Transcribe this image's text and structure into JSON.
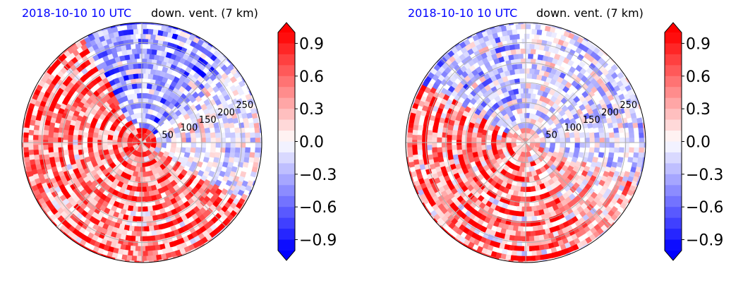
{
  "panels": [
    {
      "title_left": "2018-10-10 10 UTC",
      "title_right": "down. vent. (7 km)"
    },
    {
      "title_left": "2018-10-10 10 UTC",
      "title_right": "down. vent. (7 km)"
    }
  ],
  "colors": {
    "positive": "#ff0000",
    "negative": "#0000ff",
    "neutral": "#ffffff",
    "title_date": "#0000ff"
  },
  "chart_data": [
    {
      "type": "heatmap",
      "projection": "polar",
      "title": "down. vent. (7 km)",
      "date_label": "2018-10-10 10 UTC",
      "radial_ticks": [
        50,
        100,
        150,
        200,
        250
      ],
      "radial_gridlines": true,
      "angular_gridlines_deg": [
        0,
        45,
        90,
        135,
        180,
        225,
        270,
        315
      ],
      "field_description": "dominant positive values in south-western half forming spiral bands; negative values concentrated north and north-east of center",
      "colorbar": {
        "min": -1.0,
        "max": 1.0,
        "extend": "both",
        "levels": 20,
        "ticks": [
          "0.9",
          "0.6",
          "0.3",
          "0.0",
          "−0.3",
          "−0.6",
          "−0.9"
        ],
        "tick_values": [
          0.9,
          0.6,
          0.3,
          0.0,
          -0.3,
          -0.6,
          -0.9
        ]
      }
    },
    {
      "type": "heatmap",
      "projection": "polar",
      "title": "down. vent. (7 km)",
      "date_label": "2018-10-10 10 UTC",
      "radial_ticks": [
        50,
        100,
        150,
        200,
        250
      ],
      "radial_gridlines": true,
      "angular_gridlines_deg": [
        0,
        45,
        90,
        135,
        180,
        225,
        270,
        315
      ],
      "field_description": "positive spiral bands in west and south-west; negative streaks in north-west and east",
      "colorbar": {
        "min": -1.0,
        "max": 1.0,
        "extend": "both",
        "levels": 20,
        "ticks": [
          "0.9",
          "0.6",
          "0.3",
          "0.0",
          "−0.3",
          "−0.6",
          "−0.9"
        ],
        "tick_values": [
          0.9,
          0.6,
          0.3,
          0.0,
          -0.3,
          -0.6,
          -0.9
        ]
      }
    }
  ]
}
